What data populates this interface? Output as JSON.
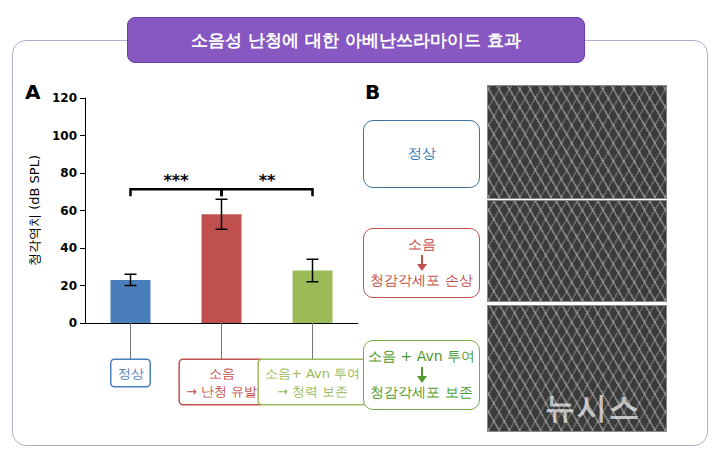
{
  "title": "소음성 난청에 대한 아베난쓰라마이드 효과",
  "panel_labels": [
    "A",
    "B"
  ],
  "chart_data": {
    "type": "bar",
    "y_label": "청각역치 (dB SPL)",
    "categories": [
      "정상",
      "소음\n→ 난청 유발",
      "소음+ Avn 투여\n→ 청력 보존"
    ],
    "values": [
      23,
      58,
      28
    ],
    "errors": [
      3,
      8,
      6
    ],
    "colors": [
      "#4a7ebb",
      "#c0504d",
      "#9bbb59"
    ],
    "ylim": [
      0,
      120
    ],
    "yticks": [
      0,
      20,
      40,
      60,
      80,
      100,
      120
    ],
    "grid": false,
    "significance": [
      {
        "from": 0,
        "to": 1,
        "label": "***"
      },
      {
        "from": 1,
        "to": 2,
        "label": "**"
      }
    ]
  },
  "panel_b": [
    {
      "lines": [
        "정상"
      ]
    },
    {
      "lines": [
        "소음",
        "청감각세포 손상"
      ]
    },
    {
      "lines": [
        "소음 + Avn 투여",
        "청감각세포 보존"
      ]
    }
  ],
  "watermark": "뉴시스"
}
